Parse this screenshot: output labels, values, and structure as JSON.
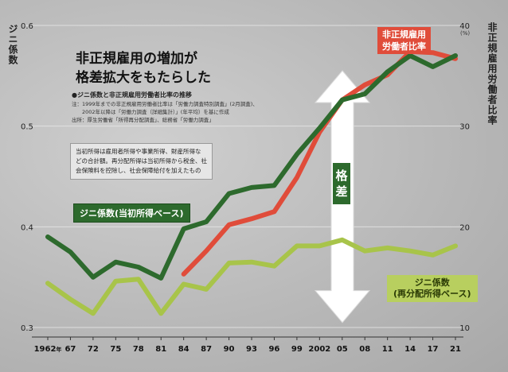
{
  "left_axis_title": "ジニ係数",
  "right_axis_title": "非正規雇用労働者比率",
  "right_unit": "(%)",
  "headline": [
    "非正規雇用の増加が",
    "格差拡大をもたらした"
  ],
  "subtitle": "●ジニ係数と非正規雇用労働者比率の推移",
  "notes": [
    "注：1999年までの非正規雇用労働者比率は「労働力調査特別調査」(2月調査)、",
    "　　2002年以降は「労働力調査（詳細集計）」(年平均）を基に作成",
    "出所：厚生労働省「所得再分配調査」、総務省「労働力調査」"
  ],
  "description": [
    "当初所得は雇用者所得や事業所得、財産所得な",
    "どの合計額。再分配所得は当初所得から税金、社",
    "会保険料を控除し、社会保障給付を加えたもの"
  ],
  "labels": {
    "gini_initial": "ジニ係数(当初所得ベース)",
    "gini_redistributed": [
      "ジニ係数",
      "(再分配所得ベース)"
    ],
    "nonregular": [
      "非正規雇用",
      "労働者比率"
    ],
    "gap": [
      "格",
      "差"
    ]
  },
  "colors": {
    "gini_initial": "#2d6a2d",
    "gini_redistributed": "#a8c44a",
    "nonregular": "#e04c3a",
    "arrow": "#ffffff"
  },
  "chart_data": {
    "type": "line",
    "x": [
      "1962",
      "67",
      "72",
      "75",
      "78",
      "81",
      "84",
      "87",
      "90",
      "93",
      "96",
      "99",
      "2002",
      "05",
      "08",
      "11",
      "14",
      "17",
      "21"
    ],
    "x_suffix_first": "年",
    "y_left": {
      "label": "ジニ係数",
      "ticks": [
        "0.3",
        "0.4",
        "0.5",
        "0.6"
      ],
      "range": [
        0.3,
        0.6
      ]
    },
    "y_right": {
      "label": "非正規雇用労働者比率",
      "unit": "(%)",
      "ticks": [
        "10",
        "20",
        "30",
        "40"
      ],
      "range": [
        10,
        40
      ]
    },
    "series": [
      {
        "name": "ジニ係数(当初所得ベース)",
        "axis": "left",
        "values": [
          0.39,
          0.375,
          0.35,
          0.365,
          0.36,
          0.349,
          0.398,
          0.405,
          0.433,
          0.439,
          0.441,
          0.472,
          0.498,
          0.526,
          0.532,
          0.554,
          0.57,
          0.559,
          0.57
        ]
      },
      {
        "name": "ジニ係数(再分配所得ベース)",
        "axis": "left",
        "values": [
          0.344,
          0.328,
          0.314,
          0.346,
          0.348,
          0.314,
          0.343,
          0.338,
          0.364,
          0.365,
          0.361,
          0.381,
          0.381,
          0.387,
          0.376,
          0.379,
          0.376,
          0.372,
          0.381
        ]
      },
      {
        "name": "非正規雇用労働者比率",
        "axis": "right",
        "values": [
          null,
          null,
          null,
          null,
          null,
          null,
          15.3,
          17.6,
          20.2,
          20.8,
          21.5,
          24.9,
          29.4,
          32.6,
          34.1,
          35.1,
          37.4,
          37.3,
          36.7
        ]
      }
    ]
  }
}
